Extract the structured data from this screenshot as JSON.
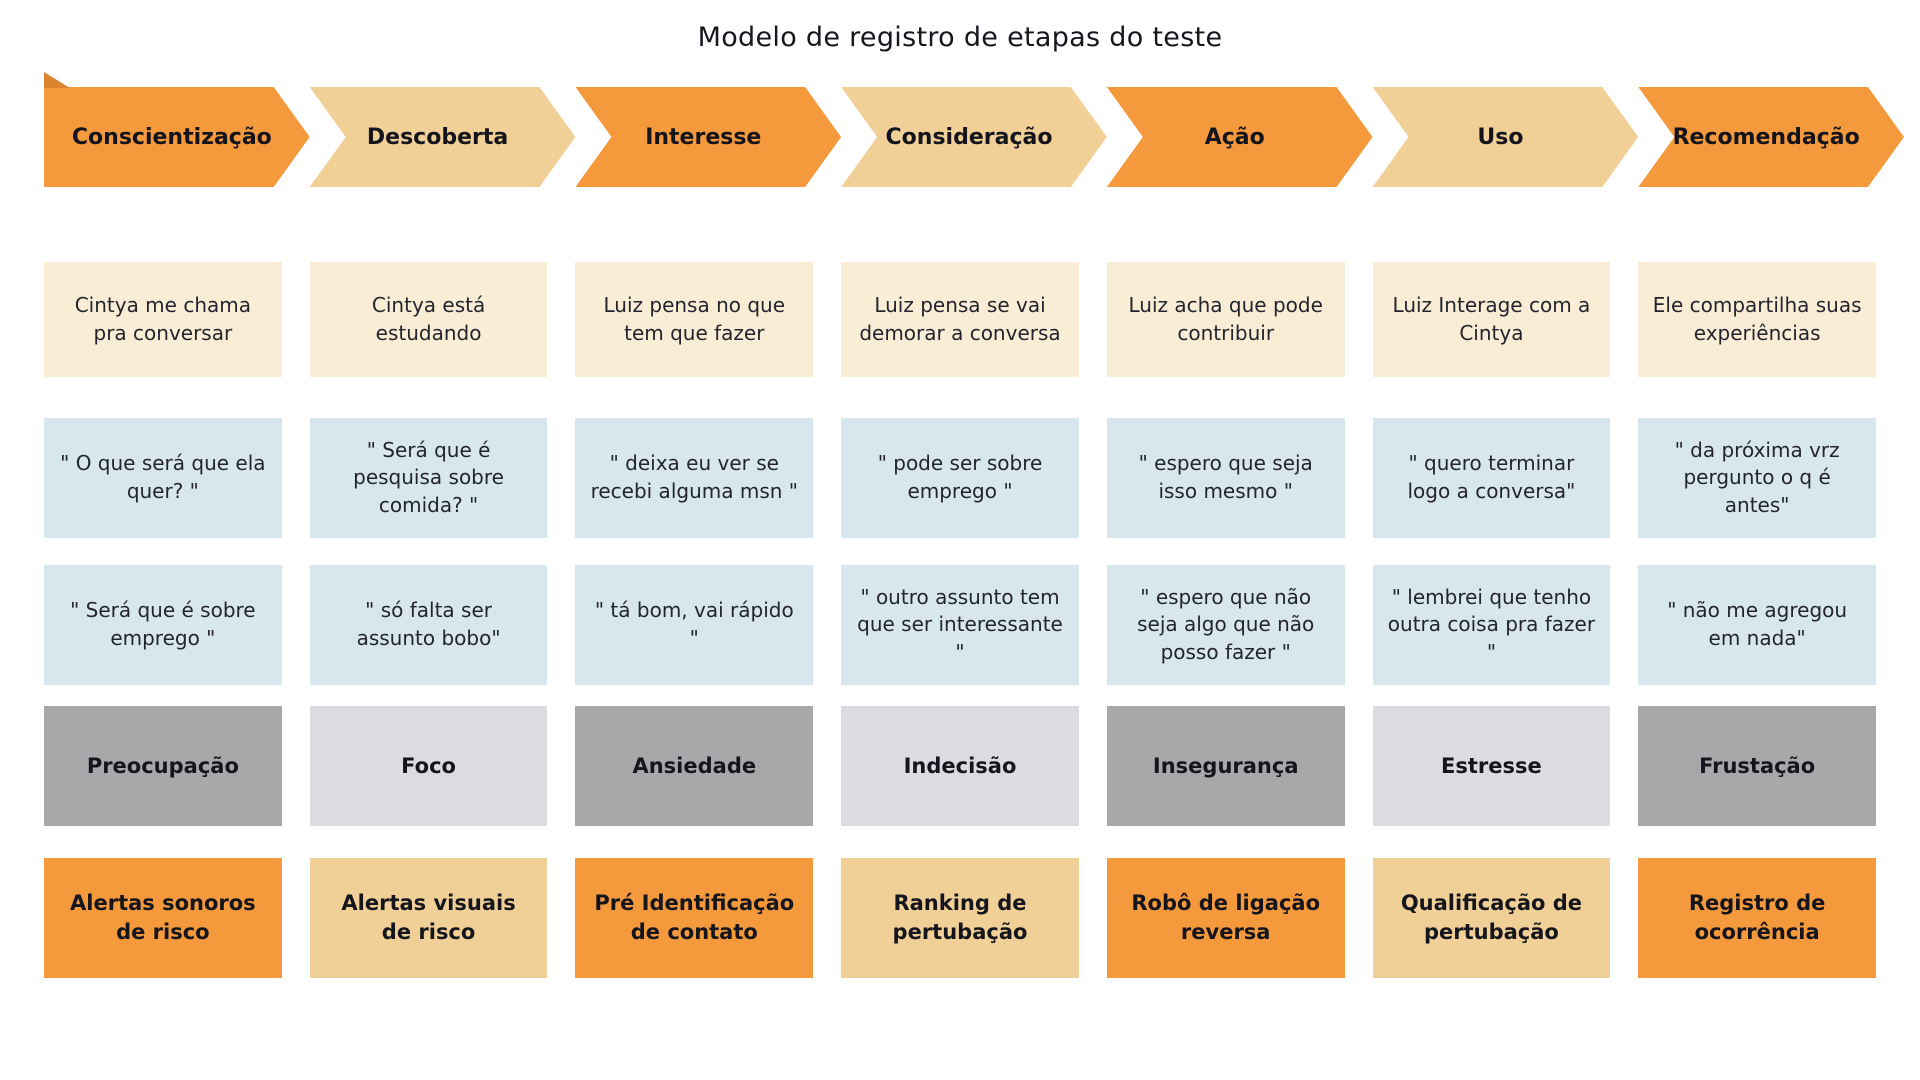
{
  "title": "Modelo de registro de etapas do teste",
  "colors": {
    "orange": "#F5993D",
    "tan": "#F0D096",
    "cream": "#FAEDD5",
    "blue": "#D8E7EE",
    "gray-dark": "#A8A8AB",
    "gray-light": "#DBDBE0",
    "fold": "#DD8430",
    "text": "#23242e"
  },
  "columns": [
    {
      "stage": "Conscientização",
      "action": "Cintya me chama pra conversar",
      "quote1": "\" O que será que ela quer? \"",
      "quote2": "\" Será que é sobre emprego \"",
      "emotion": "Preocupação",
      "solution": "Alertas sonoros de risco"
    },
    {
      "stage": "Descoberta",
      "action": "Cintya está estudando",
      "quote1": "\" Será que é pesquisa sobre comida? \"",
      "quote2": "\" só falta ser assunto bobo\"",
      "emotion": "Foco",
      "solution": "Alertas visuais de risco"
    },
    {
      "stage": "Interesse",
      "action": "Luiz pensa no que tem que fazer",
      "quote1": "\" deixa eu ver se recebi alguma msn \"",
      "quote2": "\" tá bom, vai rápido \"",
      "emotion": "Ansiedade",
      "solution": "Pré Identificação de contato"
    },
    {
      "stage": "Consideração",
      "action": "Luiz pensa se vai demorar a conversa",
      "quote1": "\" pode ser sobre emprego \"",
      "quote2": "\" outro assunto tem que ser interessante \"",
      "emotion": "Indecisão",
      "solution": "Ranking de pertubação"
    },
    {
      "stage": "Ação",
      "action": "Luiz acha que pode contribuir",
      "quote1": "\" espero que seja isso mesmo \"",
      "quote2": "\" espero que não seja algo que não posso fazer \"",
      "emotion": "Insegurança",
      "solution": "Robô de ligação reversa"
    },
    {
      "stage": "Uso",
      "action": "Luiz Interage com a Cintya",
      "quote1": "\" quero terminar logo a conversa\"",
      "quote2": "\" lembrei que tenho outra coisa pra fazer \"",
      "emotion": "Estresse",
      "solution": "Qualificação de pertubação"
    },
    {
      "stage": "Recomendação",
      "action": "Ele compartilha suas experiências",
      "quote1": "\" da próxima vrz pergunto o q é antes\"",
      "quote2": "\" não me agregou em nada\"",
      "emotion": "Frustação",
      "solution": "Registro de ocorrência"
    }
  ]
}
